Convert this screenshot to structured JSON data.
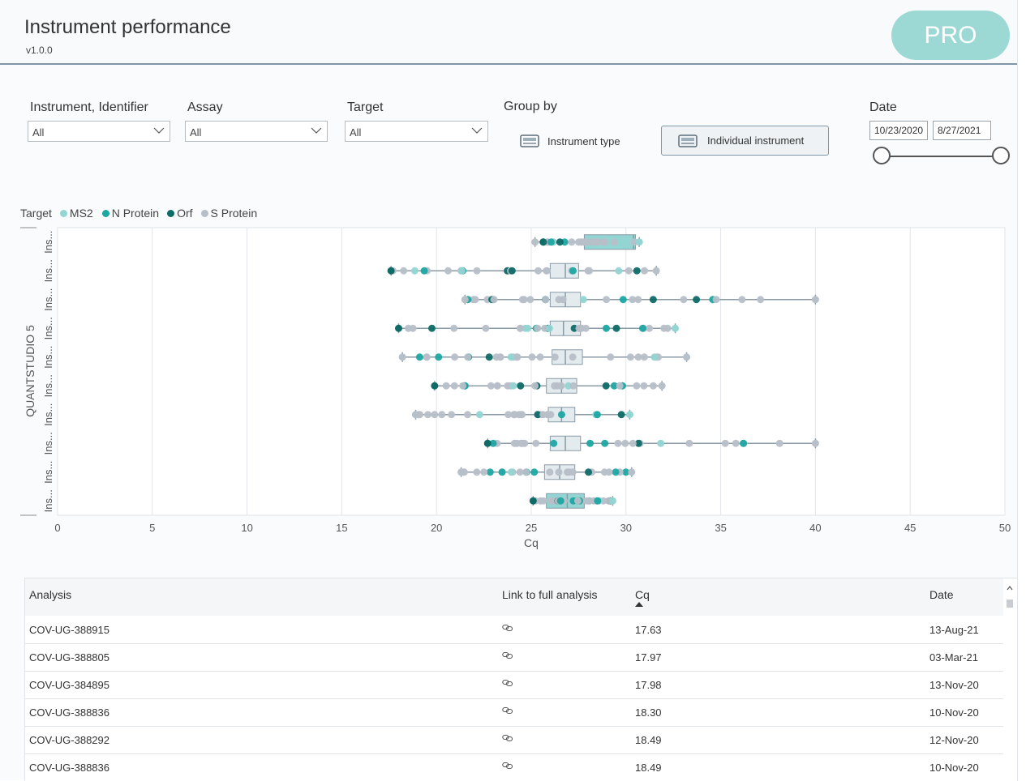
{
  "header": {
    "title": "Instrument performance",
    "version": "v1.0.0",
    "pro_badge": "PRO"
  },
  "filters": {
    "instrument": {
      "label": "Instrument, Identifier",
      "value": "All"
    },
    "assay": {
      "label": "Assay",
      "value": "All"
    },
    "target": {
      "label": "Target",
      "value": "All"
    },
    "group_by": {
      "label": "Group by",
      "options": [
        "Instrument type",
        "Individual instrument"
      ],
      "selected": "Individual instrument"
    },
    "date": {
      "label": "Date",
      "start": "10/23/2020",
      "end": "8/27/2021"
    }
  },
  "legend": {
    "title": "Target",
    "items": [
      {
        "name": "MS2",
        "color": "#93d5d3"
      },
      {
        "name": "N Protein",
        "color": "#1da7a3"
      },
      {
        "name": "Orf",
        "color": "#0e6b67"
      },
      {
        "name": "S Protein",
        "color": "#b7bfc8"
      }
    ]
  },
  "chart_data": {
    "type": "boxplot",
    "orientation": "horizontal",
    "xlabel": "Cq",
    "xlim": [
      0,
      50
    ],
    "xticks": [
      0,
      5,
      10,
      15,
      20,
      25,
      30,
      35,
      40,
      45,
      50
    ],
    "group_label": "QUANTSTUDIO 5",
    "row_label": "Ins...",
    "grid": true,
    "rows": [
      {
        "min": 25.2,
        "q1": 27.8,
        "median": 30.4,
        "q3": 30.5,
        "max": 30.7,
        "box_color": "#93d5d3"
      },
      {
        "min": 17.6,
        "q1": 26.0,
        "median": 26.8,
        "q3": 27.5,
        "max": 31.6,
        "box_color": "#e3ebee"
      },
      {
        "min": 21.5,
        "q1": 26.0,
        "median": 26.8,
        "q3": 27.6,
        "max": 40.0,
        "box_color": "#e3ebee"
      },
      {
        "min": 18.0,
        "q1": 26.0,
        "median": 26.7,
        "q3": 27.6,
        "max": 32.6,
        "box_color": "#e3ebee"
      },
      {
        "min": 18.2,
        "q1": 26.1,
        "median": 26.8,
        "q3": 27.7,
        "max": 33.2,
        "box_color": "#e3ebee"
      },
      {
        "min": 19.9,
        "q1": 25.8,
        "median": 26.6,
        "q3": 27.4,
        "max": 31.9,
        "box_color": "#e3ebee"
      },
      {
        "min": 18.9,
        "q1": 25.9,
        "median": 26.6,
        "q3": 27.3,
        "max": 30.2,
        "box_color": "#e3ebee"
      },
      {
        "min": 22.7,
        "q1": 26.0,
        "median": 26.8,
        "q3": 27.6,
        "max": 40.0,
        "box_color": "#e3ebee"
      },
      {
        "min": 21.3,
        "q1": 25.7,
        "median": 26.5,
        "q3": 27.3,
        "max": 30.3,
        "box_color": "#e3ebee"
      },
      {
        "min": 25.1,
        "q1": 25.8,
        "median": 26.9,
        "q3": 27.8,
        "max": 29.3,
        "box_color": "#93d5d3"
      }
    ]
  },
  "table": {
    "columns": [
      "Analysis",
      "Link to full analysis",
      "Cq",
      "Date"
    ],
    "sort_column": "Cq",
    "rows": [
      {
        "analysis": "COV-UG-388915",
        "cq": "17.63",
        "date": "13-Aug-21"
      },
      {
        "analysis": "COV-UG-388805",
        "cq": "17.97",
        "date": "03-Mar-21"
      },
      {
        "analysis": "COV-UG-384895",
        "cq": "17.98",
        "date": "13-Nov-20"
      },
      {
        "analysis": "COV-UG-388836",
        "cq": "18.30",
        "date": "10-Nov-20"
      },
      {
        "analysis": "COV-UG-388292",
        "cq": "18.49",
        "date": "12-Nov-20"
      },
      {
        "analysis": "COV-UG-388836",
        "cq": "18.49",
        "date": "10-Nov-20"
      }
    ]
  }
}
